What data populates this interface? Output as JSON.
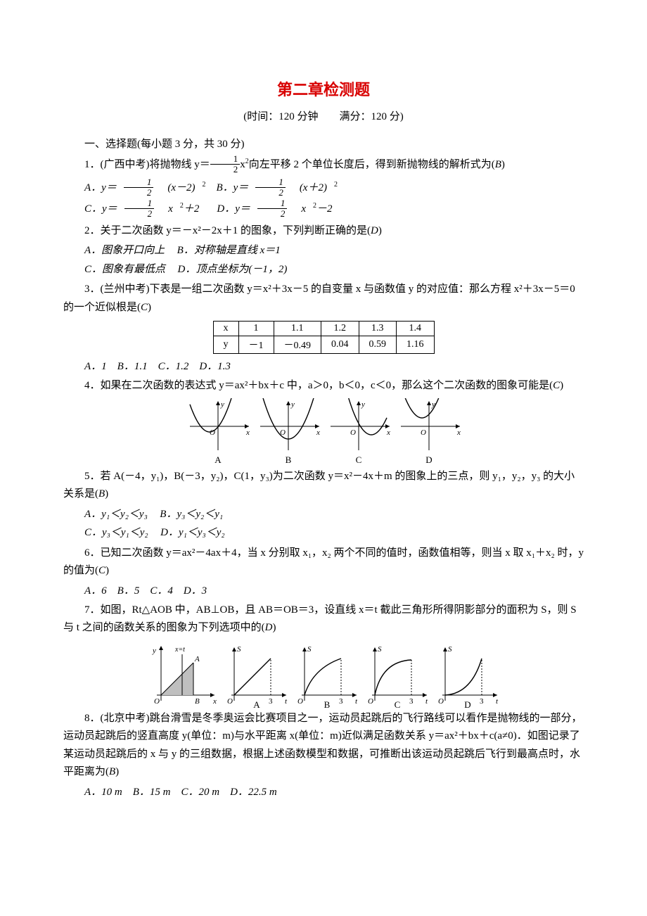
{
  "title": "第二章检测题",
  "subtitle": "(时间：120 分钟　　满分：120 分)",
  "section1": "一、选择题(每小题 3 分，共 30 分)",
  "q1": {
    "stem_a": "1．(广西中考)将抛物线 y＝",
    "stem_b": "x",
    "stem_c": "向左平移 2 个单位长度后，得到新抛物线的解析式为(",
    "ans": "B",
    "tail": ")",
    "optA_pre": "A．y＝",
    "optA_post": "(x－2)",
    "optB_pre": "B．y＝",
    "optB_post": "(x＋2)",
    "optC_pre": "C．y＝",
    "optC_post": "x",
    "optC_tail": "＋2",
    "optD_pre": "D．y＝",
    "optD_post": "x",
    "optD_tail": "－2"
  },
  "q2": {
    "stem": "2．关于二次函数 y＝－x²－2x＋1 的图象，下列判断正确的是(",
    "ans": "D",
    "tail": ")",
    "a": "A．图象开口向上",
    "b": "B．对称轴是直线 x＝1",
    "c": "C．图象有最低点",
    "d": "D．顶点坐标为(－1，2)"
  },
  "q3": {
    "stem_a": "3．(兰州中考)下表是一组二次函数 y＝x²＋3x－5 的自变量 x 与函数值 y 的对应值：那么方程 x²＋3x－5＝0 的一个近似根是(",
    "ans": "C",
    "tail": ")",
    "table": {
      "rows": [
        [
          "x",
          "1",
          "1.1",
          "1.2",
          "1.3",
          "1.4"
        ],
        [
          "y",
          "－1",
          "－0.49",
          "0.04",
          "0.59",
          "1.16"
        ]
      ]
    },
    "opts": "A．1　B．1.1　C．1.2　D．1.3"
  },
  "q4": {
    "stem": "4．如果在二次函数的表达式 y＝ax²＋bx＋c 中，a＞0，b＜0，c＜0，那么这个二次函数的图象可能是(",
    "ans": "C",
    "tail": ")",
    "labels": [
      "A",
      "B",
      "C",
      "D"
    ],
    "axis_color": "#000000",
    "curve_color": "#000000",
    "vertex_x": [
      -12,
      0,
      18,
      -10
    ],
    "vertex_y": [
      -8,
      -18,
      -12,
      12
    ],
    "a_coef": [
      0.05,
      0.045,
      0.05,
      0.05
    ]
  },
  "q5": {
    "stem": "5．若 A(－4，y₁)，B(－3，y₂)，C(1，y₃)为二次函数 y＝x²－4x＋m 的图象上的三点，则 y₁，y₂，y₃ 的大小关系是(",
    "ans": "B",
    "tail": ")",
    "a": "A．y₁＜y₂＜y₃",
    "b": "B．y₃＜y₂＜y₁",
    "c": "C．y₃＜y₁＜y₂",
    "d": "D．y₁＜y₃＜y₂"
  },
  "q6": {
    "stem": "6．已知二次函数 y＝ax²－4ax＋4，当 x 分别取 x₁，x₂ 两个不同的值时，函数值相等，则当 x 取 x₁＋x₂ 时，y 的值为(",
    "ans": "C",
    "tail": ")",
    "opts": "A．6　B．5　C．4　D．3"
  },
  "q7": {
    "stem": "7．如图，Rt△AOB 中，AB⊥OB，且 AB＝OB＝3，设直线 x＝t 截此三角形所得阴影部分的面积为 S，则 S 与 t 之间的函数关系的图象为下列选项中的(",
    "ans": "D",
    "tail": ")",
    "labels": [
      "A",
      "B",
      "C",
      "D"
    ],
    "tri": {
      "A": "A",
      "B": "B",
      "O": "O",
      "xt": "x=t",
      "y": "y",
      "x": "x"
    },
    "axis_label_S": "S",
    "axis_label_t": "t",
    "tick": "3"
  },
  "q8": {
    "stem": "8．(北京中考)跳台滑雪是冬季奥运会比赛项目之一，运动员起跳后的飞行路线可以看作是抛物线的一部分，运动员起跳后的竖直高度 y(单位：m)与水平距离 x(单位：m)近似满足函数关系 y＝ax²＋bx＋c(a≠0)．如图记录了某运动员起跳后的 x 与 y 的三组数据，根据上述函数模型和数据，可推断出该运动员起跳后飞行到最高点时，水平距离为(",
    "ans": "B",
    "tail": ")",
    "opts": "A．10 m　B．15 m　C．20 m　D．22.5 m"
  }
}
